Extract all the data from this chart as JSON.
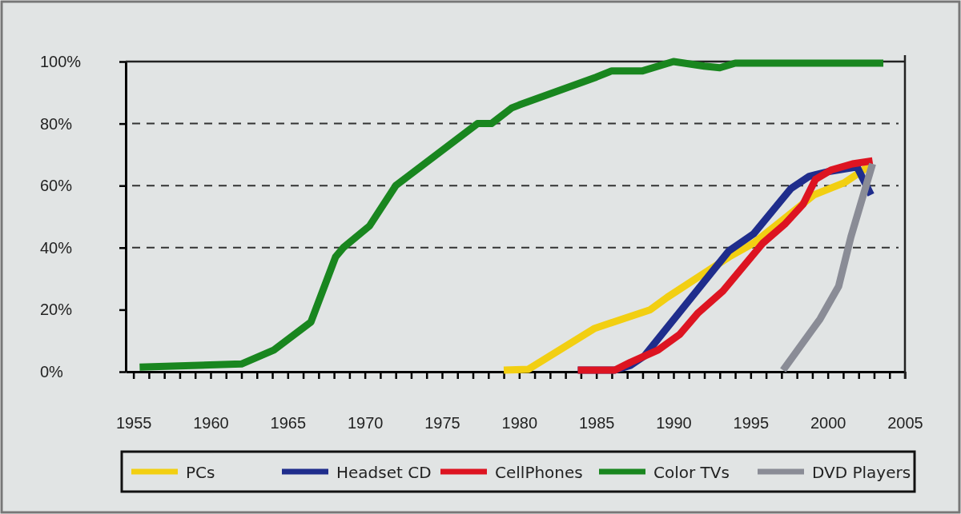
{
  "chart_data": {
    "type": "line",
    "xlim": [
      1954.5,
      2005
    ],
    "xticks": [
      1955,
      {
        "value": 1956,
        "label": null
      },
      {
        "value": 1957,
        "label": null
      },
      {
        "value": 1958,
        "label": null
      },
      {
        "value": 1959,
        "label": null
      },
      1960,
      {
        "value": 1961,
        "label": null
      },
      {
        "value": 1962,
        "label": null
      },
      {
        "value": 1963,
        "label": null
      },
      {
        "value": 1964,
        "label": null
      },
      1965,
      {
        "value": 1966,
        "label": null
      },
      {
        "value": 1967,
        "label": null
      },
      {
        "value": 1968,
        "label": null
      },
      {
        "value": 1969,
        "label": null
      },
      1970,
      {
        "value": 1971,
        "label": null
      },
      {
        "value": 1972,
        "label": null
      },
      {
        "value": 1973,
        "label": null
      },
      {
        "value": 1974,
        "label": null
      },
      1975,
      {
        "value": 1976,
        "label": null
      },
      {
        "value": 1977,
        "label": null
      },
      {
        "value": 1978,
        "label": null
      },
      {
        "value": 1979,
        "label": null
      },
      1980,
      {
        "value": 1981,
        "label": null
      },
      {
        "value": 1982,
        "label": null
      },
      {
        "value": 1983,
        "label": null
      },
      {
        "value": 1984,
        "label": null
      },
      1985,
      {
        "value": 1986,
        "label": null
      },
      {
        "value": 1987,
        "label": null
      },
      {
        "value": 1988,
        "label": null
      },
      {
        "value": 1989,
        "label": null
      },
      1990,
      {
        "value": 1991,
        "label": null
      },
      {
        "value": 1992,
        "label": null
      },
      {
        "value": 1993,
        "label": null
      },
      {
        "value": 1994,
        "label": null
      },
      1995,
      {
        "value": 1996,
        "label": null
      },
      {
        "value": 1997,
        "label": null
      },
      {
        "value": 1998,
        "label": null
      },
      {
        "value": 1999,
        "label": null
      },
      2000,
      {
        "value": 2001,
        "label": null
      },
      {
        "value": 2002,
        "label": null
      },
      {
        "value": 2003,
        "label": null
      },
      {
        "value": 2004,
        "label": null
      },
      2005
    ],
    "ylim": [
      0,
      100
    ],
    "yticks": [
      {
        "value": 0,
        "label": "0%"
      },
      {
        "value": 20,
        "label": "20%"
      },
      {
        "value": 40,
        "label": "40%"
      },
      {
        "value": 60,
        "label": "60%"
      },
      {
        "value": 80,
        "label": "80%"
      },
      {
        "value": 100,
        "label": "100%"
      }
    ],
    "ref_lines": [
      {
        "axis": "y",
        "value": 40,
        "line_style": "dashed",
        "color": "#333333"
      },
      {
        "axis": "y",
        "value": 60,
        "line_style": "dashed",
        "color": "#333333"
      },
      {
        "axis": "y",
        "value": 80,
        "line_style": "dashed",
        "color": "#333333"
      }
    ],
    "legend": "bottom",
    "line_style": "solid",
    "marker": "none",
    "series": [
      {
        "name": "PCs",
        "color": "#f2cf12",
        "x": [
          1979,
          1980.6,
          1984.9,
          1988.5,
          1989.6,
          1993.6,
          1995.2,
          1997.1,
          1999.1,
          2001.1,
          2002.9
        ],
        "values": [
          0.5,
          0.8,
          14,
          20,
          24,
          37,
          41.5,
          49,
          57,
          61,
          67
        ]
      },
      {
        "name": "Headset CD",
        "color": "#1f2d8c",
        "x": [
          1983.8,
          1986.2,
          1987.2,
          1988.1,
          1993.6,
          1995.2,
          1997.6,
          1998.8,
          2000,
          2001.9,
          2002.8
        ],
        "values": [
          0.5,
          0.5,
          2,
          5,
          39,
          44.5,
          59,
          63,
          64.5,
          66,
          57
        ]
      },
      {
        "name": "CellPhones",
        "color": "#dd1421",
        "x": [
          1983.8,
          1986.2,
          1987.2,
          1989,
          1990.4,
          1991.6,
          1993.2,
          1995.8,
          1997.2,
          1998.4,
          1999.2,
          2000.2,
          2001.6,
          2002.9
        ],
        "values": [
          0.5,
          0.5,
          3,
          7,
          12,
          19,
          26,
          41.5,
          47.5,
          54,
          62,
          65,
          67,
          68
        ]
      },
      {
        "name": "Color TVs",
        "color": "#19861f",
        "x": [
          1955.4,
          1962,
          1964.1,
          1966.5,
          1968.1,
          1968.6,
          1970.3,
          1972,
          1977.3,
          1978.2,
          1979.5,
          1980,
          1985,
          1986,
          1988,
          1990,
          1992,
          1993,
          1994,
          2003.6
        ],
        "values": [
          1.5,
          2.5,
          7,
          16,
          37,
          40,
          47,
          60,
          80,
          80,
          85,
          86,
          95,
          97,
          97,
          100,
          98.5,
          98,
          99.5,
          99.5
        ]
      },
      {
        "name": "DVD Players",
        "color": "#8a8c96",
        "x": [
          1997.1,
          1999.5,
          2000.7,
          2001.5,
          2002.9
        ],
        "values": [
          0.5,
          17,
          27.5,
          43.5,
          67
        ]
      }
    ]
  }
}
